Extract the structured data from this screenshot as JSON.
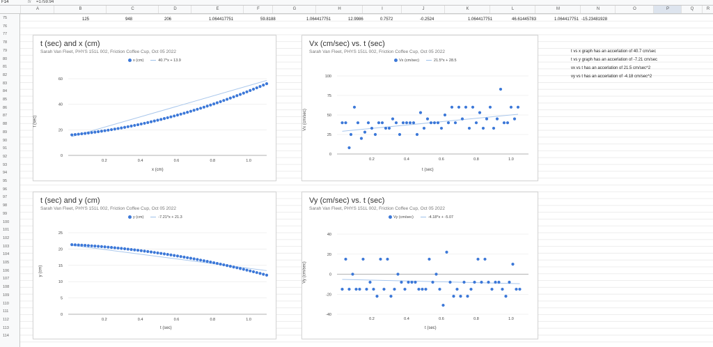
{
  "formula_bar": {
    "cell_ref": "F14",
    "fx": "fx",
    "value": "=1759.94"
  },
  "columns": [
    "A",
    "B",
    "C",
    "D",
    "E",
    "F",
    "G",
    "H",
    "I",
    "J",
    "K",
    "L",
    "M",
    "N",
    "O",
    "P",
    "Q",
    "R"
  ],
  "rows": [
    "75",
    "76",
    "77",
    "78",
    "79",
    "80",
    "81",
    "82",
    "83",
    "84",
    "85",
    "86",
    "87",
    "88",
    "89",
    "90",
    "91",
    "92",
    "93",
    "94",
    "95",
    "96",
    "97",
    "98",
    "99",
    "100",
    "101",
    "102",
    "103",
    "104",
    "105",
    "106",
    "107",
    "108",
    "109",
    "110",
    "111",
    "112",
    "113",
    "114"
  ],
  "row75": [
    "125",
    "948",
    "206",
    "1.064417751",
    "59.8188",
    "1.064417751",
    "12.9986",
    "0.7572",
    "-0.2524",
    "1.064417751",
    "46.61445783",
    "1.064417751",
    "-15.23481928"
  ],
  "notes": [
    "t vs x graph has an accerlation of 40.7 cm/sec",
    "t vs y graph has an accerlation of -7.21 cm/sec",
    "vx vs t has an accerlation of 21.5 cm/sec^2",
    "vy vs t has an accerlation of -4.18 cm/sec^2"
  ],
  "charts": {
    "c1": {
      "title": "t (sec) and x (cm)",
      "subtitle": "Sarah Van Fleet, PHYS 151L 002, Friction Coffee Cup, Oct 05 2022",
      "legend_series": "x (cm)",
      "legend_trend": "40.7*x + 13.9",
      "xlabel": "x (cm)",
      "ylabel": "t (sec)"
    },
    "c2": {
      "title": "Vx (cm/sec) vs. t (sec)",
      "subtitle": "Sarah Van Fleet, PHYS 151L 002, Friction Coffee Cup, Oct 05 2022",
      "legend_series": "Vx (cm/sec)",
      "legend_trend": "21.5*x + 28.5",
      "xlabel": "t (sec)",
      "ylabel": "Vx (cm/sec)"
    },
    "c3": {
      "title": "t (sec) and y (cm)",
      "subtitle": "Sarah Van Fleet, PHYS 151L 002, Friction Coffee Cup, Oct 05 2022",
      "legend_series": "y (cm)",
      "legend_trend": "-7.21*x + 21.3",
      "xlabel": "t (sec)",
      "ylabel": "y (cm)"
    },
    "c4": {
      "title": "Vy (cm/sec) vs. t (sec)",
      "subtitle": "Sarah Van Fleet, PHYS 151L 002, Friction Coffee Cup, Oct 05 2022",
      "legend_series": "Vy (cm/sec)",
      "legend_trend": "-4.18*x + -5.07",
      "xlabel": "t (sec)",
      "ylabel": "Vy (cm/sec)"
    }
  },
  "chart_data": [
    {
      "id": "c1",
      "type": "scatter",
      "title": "t (sec) and x (cm)",
      "xlabel": "x (cm)",
      "ylabel": "t (sec)",
      "xlim": [
        0,
        1.1
      ],
      "ylim": [
        0,
        60
      ],
      "xticks": [
        "0.2",
        "0.4",
        "0.6",
        "0.8",
        "1.0"
      ],
      "xtick_values": [
        0.2,
        0.4,
        0.6,
        0.8,
        1.0
      ],
      "yticks": [
        "0",
        "20",
        "40",
        "60"
      ],
      "ytick_values": [
        0,
        20,
        40,
        60
      ],
      "x_start": 0.02,
      "x_end": 1.1,
      "n": 60,
      "y_func": "quad",
      "y_a": 15.8,
      "y_b": 13,
      "y_c": 21.5,
      "trend": [
        13.9,
        40.7
      ]
    },
    {
      "id": "c2",
      "type": "scatter",
      "title": "Vx (cm/sec) vs. t (sec)",
      "xlabel": "t (sec)",
      "ylabel": "Vx (cm/sec)",
      "xlim": [
        0,
        1.1
      ],
      "ylim": [
        0,
        100
      ],
      "xticks": [
        "0.2",
        "0.4",
        "0.6",
        "0.8",
        "1.0"
      ],
      "xtick_values": [
        0.2,
        0.4,
        0.6,
        0.8,
        1.0
      ],
      "yticks": [
        "0",
        "25",
        "50",
        "75",
        "100"
      ],
      "ytick_values": [
        0,
        25,
        50,
        75,
        100
      ],
      "x": [
        0.03,
        0.05,
        0.07,
        0.08,
        0.1,
        0.12,
        0.14,
        0.16,
        0.18,
        0.2,
        0.22,
        0.24,
        0.26,
        0.28,
        0.3,
        0.32,
        0.34,
        0.36,
        0.38,
        0.4,
        0.42,
        0.44,
        0.46,
        0.48,
        0.5,
        0.52,
        0.54,
        0.56,
        0.58,
        0.6,
        0.62,
        0.64,
        0.66,
        0.68,
        0.7,
        0.72,
        0.74,
        0.76,
        0.78,
        0.8,
        0.82,
        0.84,
        0.86,
        0.88,
        0.9,
        0.92,
        0.94,
        0.96,
        0.98,
        1.0,
        1.02,
        1.04
      ],
      "y": [
        40,
        40,
        8,
        25,
        60,
        40,
        20,
        28,
        40,
        33,
        25,
        40,
        40,
        33,
        33,
        45,
        40,
        25,
        40,
        40,
        40,
        40,
        25,
        53,
        33,
        45,
        40,
        40,
        40,
        33,
        50,
        40,
        60,
        40,
        60,
        45,
        60,
        33,
        60,
        40,
        53,
        33,
        45,
        60,
        33,
        45,
        83,
        40,
        40,
        60,
        45,
        60
      ],
      "trend": [
        28.5,
        21.5
      ]
    },
    {
      "id": "c3",
      "type": "scatter",
      "title": "t (sec) and y (cm)",
      "xlabel": "t (sec)",
      "ylabel": "y (cm)",
      "xlim": [
        0,
        1.1
      ],
      "ylim": [
        0,
        25
      ],
      "xticks": [
        "0.2",
        "0.4",
        "0.6",
        "0.8",
        "1.0"
      ],
      "xtick_values": [
        0.2,
        0.4,
        0.6,
        0.8,
        1.0
      ],
      "yticks": [
        "0",
        "5",
        "10",
        "15",
        "20",
        "25"
      ],
      "ytick_values": [
        0,
        5,
        10,
        15,
        20,
        25
      ],
      "x_start": 0.02,
      "x_end": 1.1,
      "n": 60,
      "y_func": "quad",
      "y_a": 21.4,
      "y_b": -2.5,
      "y_c": -5.5,
      "trend": [
        21.3,
        -7.21
      ]
    },
    {
      "id": "c4",
      "type": "scatter",
      "title": "Vy (cm/sec) vs. t (sec)",
      "xlabel": "t (sec)",
      "ylabel": "Vy (cm/sec)",
      "xlim": [
        0,
        1.1
      ],
      "ylim": [
        -40,
        40
      ],
      "xticks": [
        "0.2",
        "0.4",
        "0.6",
        "0.8",
        "1.0"
      ],
      "xtick_values": [
        0.2,
        0.4,
        0.6,
        0.8,
        1.0
      ],
      "yticks": [
        "-40",
        "-20",
        "0",
        "20",
        "40"
      ],
      "ytick_values": [
        -40,
        -20,
        0,
        20,
        40
      ],
      "x": [
        0.03,
        0.05,
        0.07,
        0.09,
        0.11,
        0.13,
        0.15,
        0.17,
        0.19,
        0.21,
        0.23,
        0.25,
        0.27,
        0.29,
        0.31,
        0.33,
        0.35,
        0.37,
        0.39,
        0.41,
        0.43,
        0.45,
        0.47,
        0.49,
        0.51,
        0.53,
        0.55,
        0.57,
        0.59,
        0.61,
        0.63,
        0.65,
        0.67,
        0.69,
        0.71,
        0.73,
        0.75,
        0.77,
        0.79,
        0.81,
        0.83,
        0.85,
        0.87,
        0.89,
        0.91,
        0.93,
        0.95,
        0.97,
        0.99,
        1.01,
        1.03,
        1.05
      ],
      "y": [
        -15,
        15,
        -15,
        0,
        -15,
        -15,
        15,
        -15,
        -8,
        -15,
        -22,
        15,
        -15,
        15,
        -22,
        -15,
        0,
        -8,
        -15,
        -8,
        -8,
        -8,
        -15,
        -15,
        -15,
        15,
        -8,
        0,
        -15,
        -31,
        22,
        -8,
        -22,
        -15,
        -22,
        -8,
        -22,
        -15,
        -8,
        15,
        -8,
        15,
        -8,
        -15,
        -8,
        -8,
        -15,
        -22,
        -8,
        10,
        -15,
        -15
      ],
      "trend": [
        -5.07,
        -4.18
      ]
    }
  ]
}
